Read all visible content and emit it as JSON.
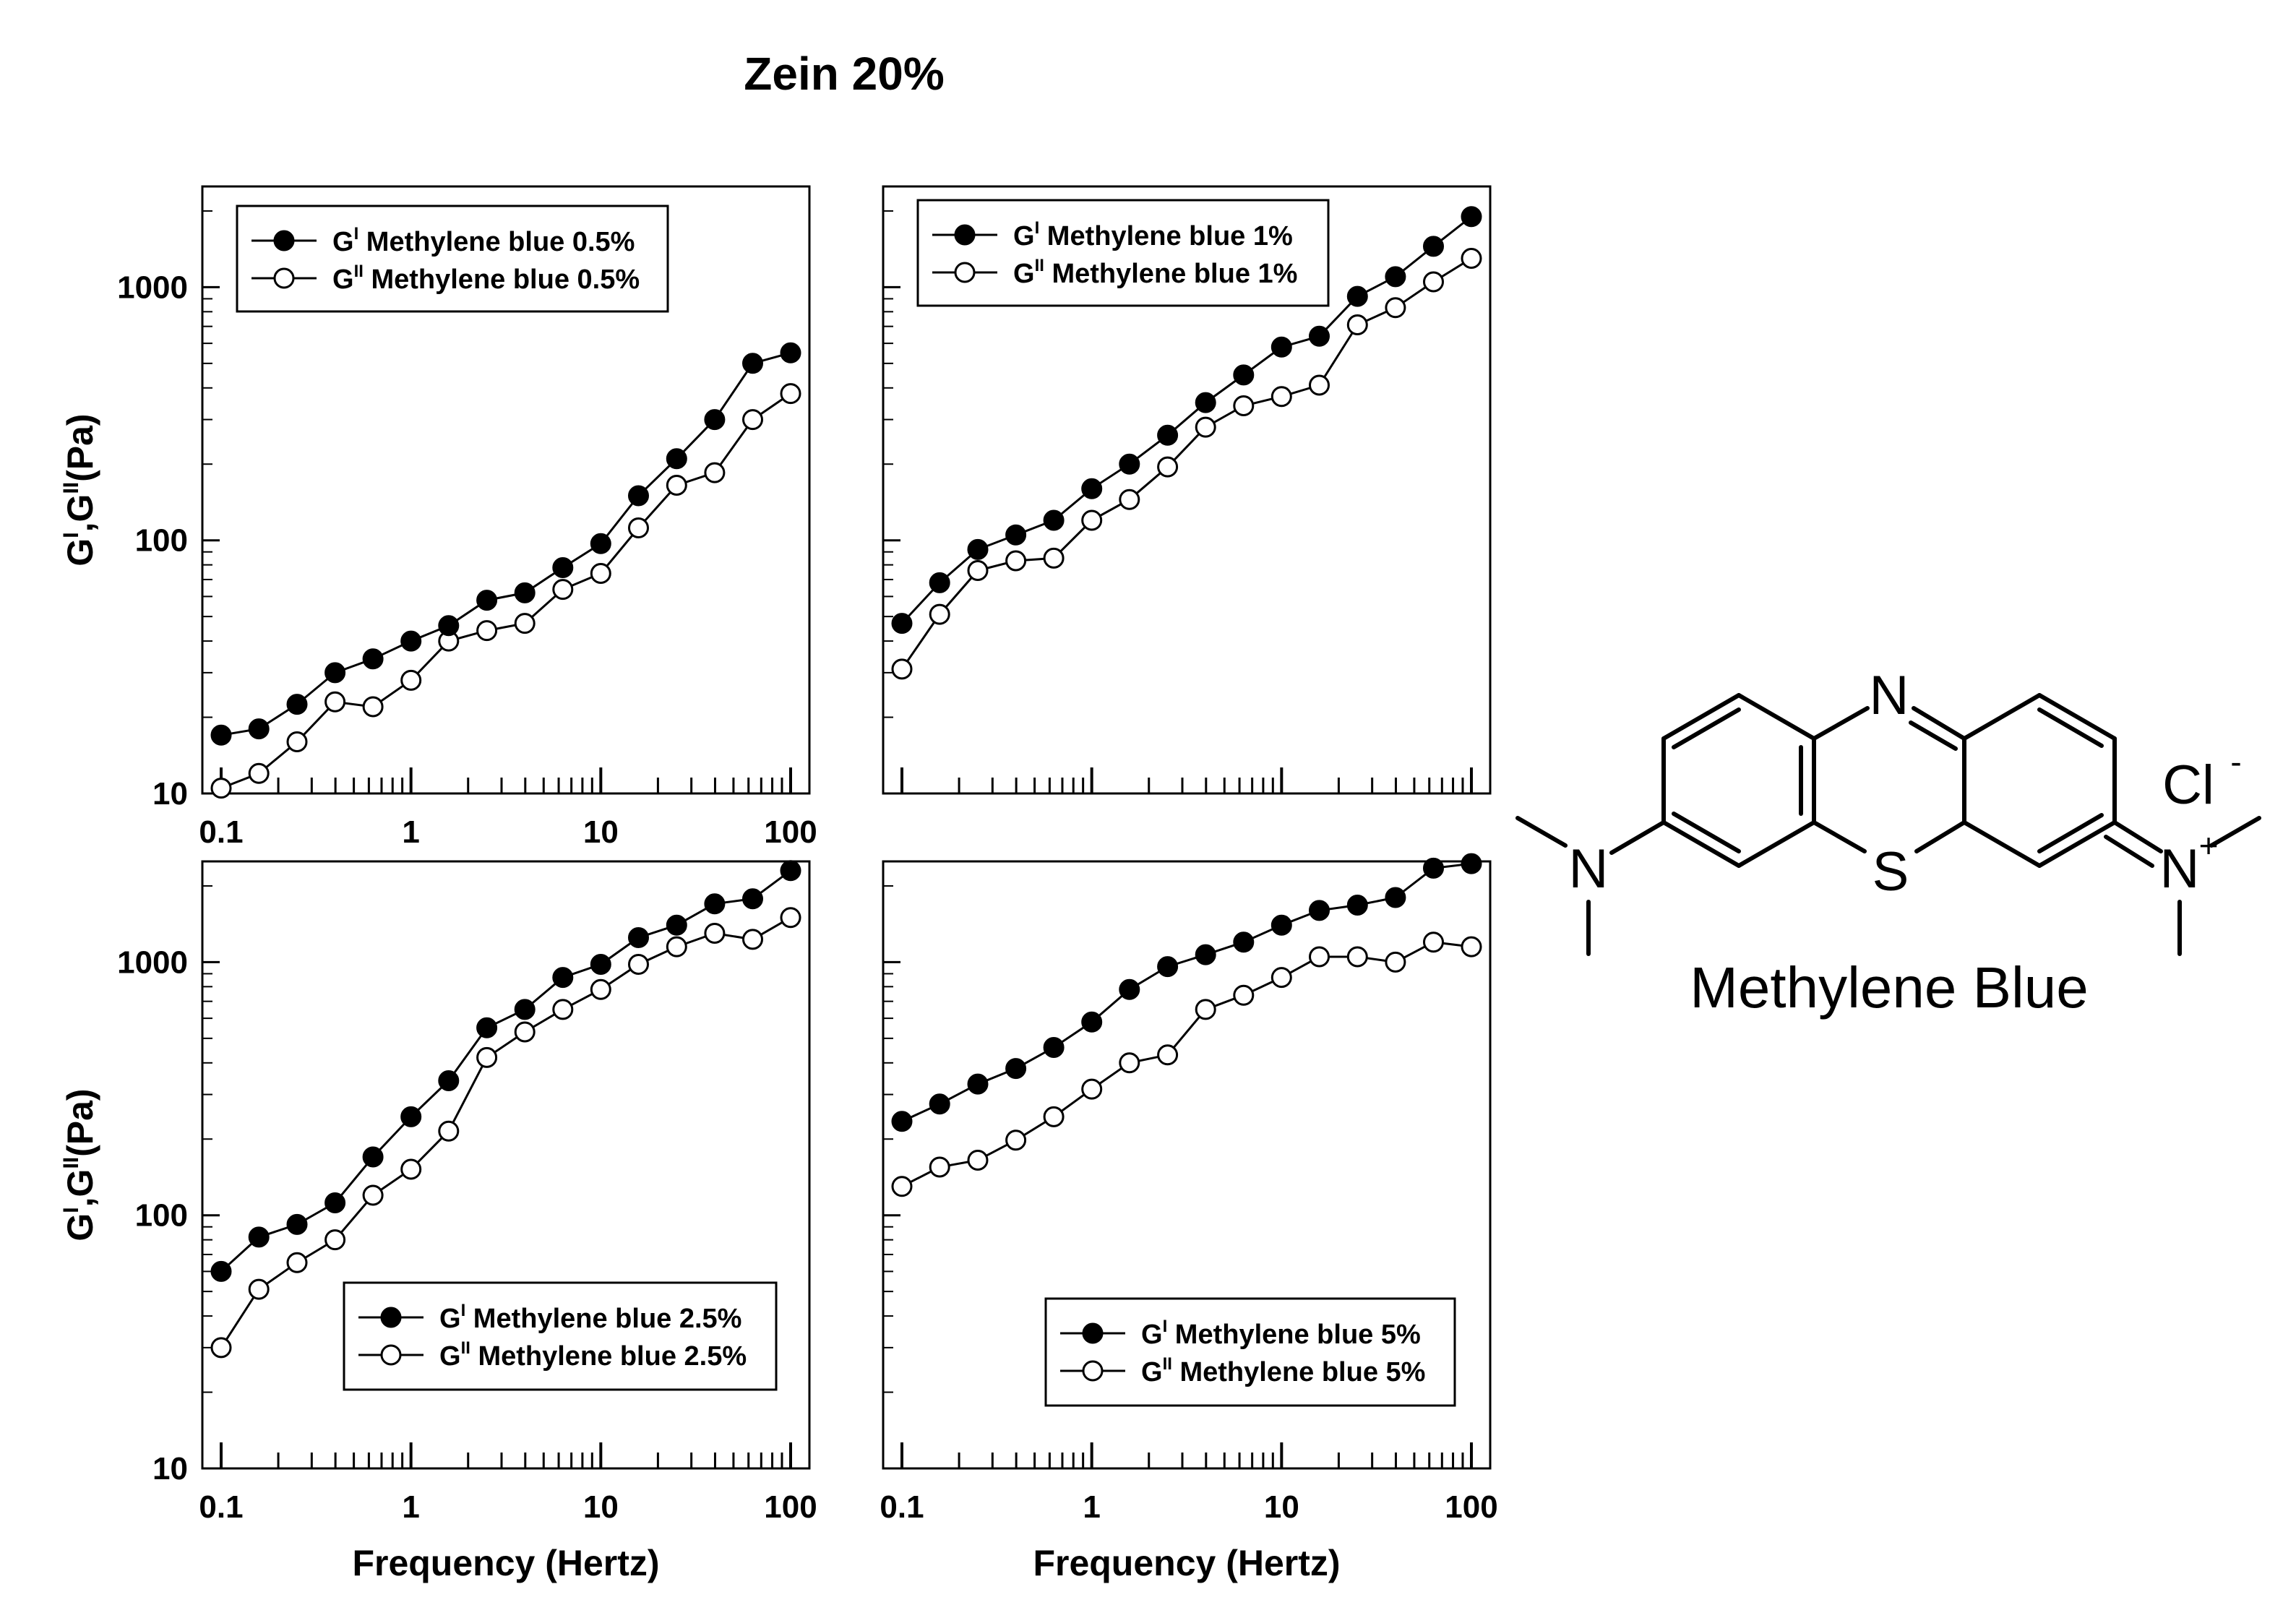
{
  "figure": {
    "title": "Zein 20%",
    "ylabel_parts": [
      "G",
      "I",
      ",G",
      "II",
      "(Pa)"
    ],
    "xlabel": "Frequency (Hertz)",
    "molecule": {
      "name": "Methylene Blue",
      "atoms": {
        "n_ring": "N",
        "s_ring": "S",
        "n_amine": "N",
        "n_iminium": "N",
        "cation": "+",
        "chloride": "Cl",
        "anion": "-"
      }
    }
  },
  "chart_data": [
    {
      "type": "line",
      "panel": "top-left",
      "x_scale": "log",
      "y_scale": "log",
      "xlim": [
        0.1,
        100
      ],
      "ylim": [
        10,
        2500
      ],
      "x_ticks": [
        "0.1",
        "1",
        "10",
        "100"
      ],
      "y_ticks": [
        "10",
        "100",
        "1000"
      ],
      "legend_position": "top-left",
      "x": [
        0.1,
        0.158,
        0.251,
        0.398,
        0.631,
        1,
        1.58,
        2.51,
        3.98,
        6.31,
        10,
        15.8,
        25.1,
        39.8,
        63.1,
        100
      ],
      "series": [
        {
          "name_main": "G",
          "name_sup": "I",
          "name_rest": " Methylene blue 0.5%",
          "marker": "filled",
          "values": [
            17,
            18,
            22.5,
            30,
            34,
            40,
            46,
            58,
            62,
            78,
            97,
            150,
            210,
            300,
            500,
            550
          ]
        },
        {
          "name_main": "G",
          "name_sup": "II",
          "name_rest": " Methylene blue 0.5%",
          "marker": "open",
          "values": [
            10.5,
            12,
            16,
            23,
            22,
            28,
            40,
            44,
            47,
            64,
            74,
            112,
            165,
            185,
            300,
            380
          ]
        }
      ]
    },
    {
      "type": "line",
      "panel": "top-right",
      "x_scale": "log",
      "y_scale": "log",
      "xlim": [
        0.1,
        100
      ],
      "ylim": [
        10,
        2500
      ],
      "x_ticks": [],
      "y_ticks": [],
      "legend_position": "top-left",
      "x": [
        0.1,
        0.158,
        0.251,
        0.398,
        0.631,
        1,
        1.58,
        2.51,
        3.98,
        6.31,
        10,
        15.8,
        25.1,
        39.8,
        63.1,
        100
      ],
      "series": [
        {
          "name_main": "G",
          "name_sup": "I",
          "name_rest": " Methylene blue 1%",
          "marker": "filled",
          "values": [
            47,
            68,
            92,
            105,
            120,
            160,
            200,
            260,
            350,
            450,
            580,
            640,
            920,
            1100,
            1450,
            1900
          ]
        },
        {
          "name_main": "G",
          "name_sup": "II",
          "name_rest": " Methylene blue 1%",
          "marker": "open",
          "values": [
            31,
            51,
            76,
            83,
            85,
            120,
            145,
            195,
            280,
            340,
            370,
            410,
            710,
            830,
            1050,
            1300
          ]
        }
      ]
    },
    {
      "type": "line",
      "panel": "bottom-left",
      "x_scale": "log",
      "y_scale": "log",
      "xlim": [
        0.1,
        100
      ],
      "ylim": [
        10,
        2500
      ],
      "x_ticks": [
        "0.1",
        "1",
        "10",
        "100"
      ],
      "y_ticks": [
        "10",
        "100",
        "1000"
      ],
      "legend_position": "bottom-right",
      "x": [
        0.1,
        0.158,
        0.251,
        0.398,
        0.631,
        1,
        1.58,
        2.51,
        3.98,
        6.31,
        10,
        15.8,
        25.1,
        39.8,
        63.1,
        100
      ],
      "series": [
        {
          "name_main": "G",
          "name_sup": "I",
          "name_rest": " Methylene blue 2.5%",
          "marker": "filled",
          "values": [
            60,
            82,
            92,
            112,
            170,
            245,
            340,
            550,
            650,
            870,
            980,
            1250,
            1400,
            1700,
            1780,
            2300
          ]
        },
        {
          "name_main": "G",
          "name_sup": "II",
          "name_rest": " Methylene blue 2.5%",
          "marker": "open",
          "values": [
            30,
            51,
            65,
            80,
            120,
            152,
            215,
            420,
            530,
            650,
            780,
            980,
            1150,
            1300,
            1230,
            1500
          ]
        }
      ]
    },
    {
      "type": "line",
      "panel": "bottom-right",
      "x_scale": "log",
      "y_scale": "log",
      "xlim": [
        0.1,
        100
      ],
      "ylim": [
        10,
        2500
      ],
      "x_ticks": [
        "0.1",
        "1",
        "10",
        "100"
      ],
      "y_ticks": [],
      "legend_position": "bottom-right",
      "x": [
        0.1,
        0.158,
        0.251,
        0.398,
        0.631,
        1,
        1.58,
        2.51,
        3.98,
        6.31,
        10,
        15.8,
        25.1,
        39.8,
        63.1,
        100
      ],
      "series": [
        {
          "name_main": "G",
          "name_sup": "I",
          "name_rest": " Methylene blue 5%",
          "marker": "filled",
          "values": [
            235,
            275,
            330,
            380,
            460,
            580,
            780,
            960,
            1070,
            1200,
            1400,
            1600,
            1680,
            1800,
            2350,
            2450
          ]
        },
        {
          "name_main": "G",
          "name_sup": "II",
          "name_rest": " Methylene blue 5%",
          "marker": "open",
          "values": [
            130,
            155,
            165,
            198,
            245,
            315,
            400,
            430,
            650,
            740,
            870,
            1050,
            1050,
            1000,
            1200,
            1150
          ]
        }
      ]
    }
  ]
}
